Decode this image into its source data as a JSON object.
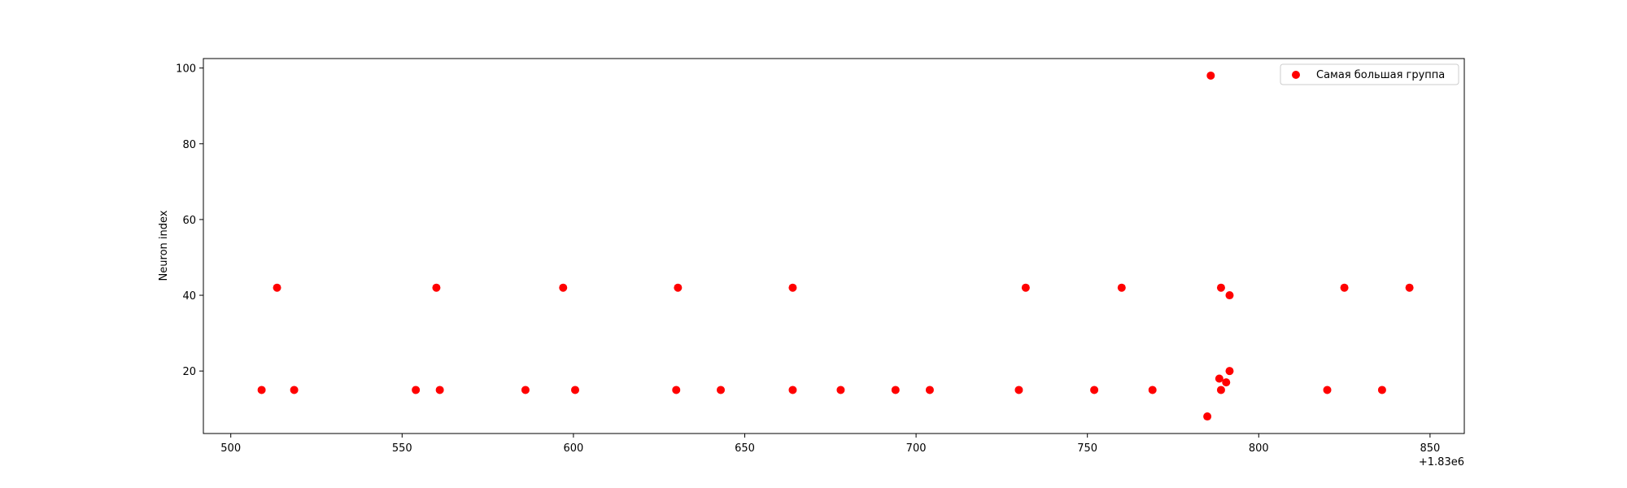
{
  "chart_data": {
    "type": "scatter",
    "title": "",
    "xlabel": "",
    "ylabel": "Neuron index",
    "x_offset_label": "+1.83e6",
    "xlim": [
      1830492,
      1830860
    ],
    "ylim": [
      3.5,
      102.5
    ],
    "x_ticks": [
      1830500,
      1830550,
      1830600,
      1830650,
      1830700,
      1830750,
      1830800,
      1830850
    ],
    "x_tick_labels": [
      "500",
      "550",
      "600",
      "650",
      "700",
      "750",
      "800",
      "850"
    ],
    "y_ticks": [
      20,
      40,
      60,
      80,
      100
    ],
    "y_tick_labels": [
      "20",
      "40",
      "60",
      "80",
      "100"
    ],
    "grid": false,
    "legend_position": "top-right",
    "series": [
      {
        "name": "Самая большая группа",
        "color": "#ff0000",
        "x": [
          1830509,
          1830513.5,
          1830518.5,
          1830554,
          1830560,
          1830561,
          1830586,
          1830597,
          1830600.5,
          1830630,
          1830630.5,
          1830643,
          1830664,
          1830664,
          1830678,
          1830694,
          1830704,
          1830730,
          1830732,
          1830752,
          1830760,
          1830769,
          1830785,
          1830786,
          1830788.5,
          1830789,
          1830789,
          1830790.5,
          1830791.5,
          1830791.5,
          1830820,
          1830825,
          1830836,
          1830844
        ],
        "y": [
          15,
          42,
          15,
          15,
          42,
          15,
          15,
          42,
          15,
          15,
          42,
          15,
          15,
          42,
          15,
          15,
          15,
          15,
          42,
          15,
          42,
          15,
          8,
          98,
          18,
          15,
          42,
          17,
          40,
          20,
          15,
          42,
          15,
          42
        ]
      }
    ]
  }
}
